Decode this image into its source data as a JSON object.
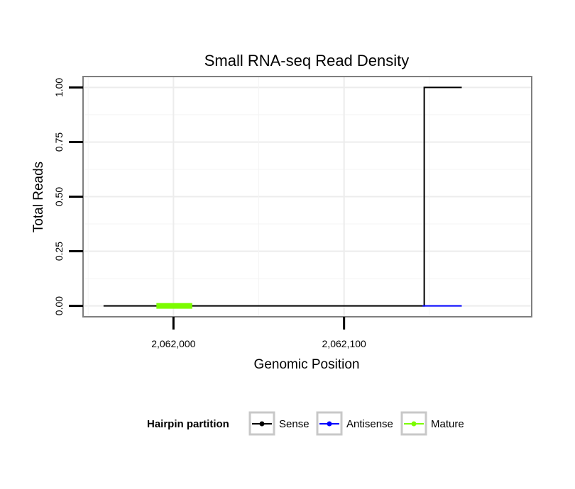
{
  "chart_data": {
    "type": "line",
    "title": "Small RNA-seq Read Density",
    "xlabel": "Genomic Position",
    "ylabel": "Total Reads",
    "xlim": [
      2061947,
      2062210
    ],
    "ylim": [
      -0.05,
      1.05
    ],
    "x_ticks": [
      2062000,
      2062100
    ],
    "x_tick_labels": [
      "2,062,000",
      "2,062,100"
    ],
    "y_ticks": [
      0.0,
      0.25,
      0.5,
      0.75,
      1.0
    ],
    "y_tick_labels": [
      "0.00",
      "0.25",
      "0.50",
      "0.75",
      "1.00"
    ],
    "grid": true,
    "legend": {
      "title": "Hairpin partition",
      "placement": "bottom",
      "entries": [
        {
          "label": "Sense",
          "color": "#000000"
        },
        {
          "label": "Antisense",
          "color": "#0000ff"
        },
        {
          "label": "Mature",
          "color": "#7cfc00"
        }
      ]
    },
    "series": [
      {
        "name": "Sense",
        "color": "#000000",
        "step": true,
        "x": [
          2061959,
          2062146,
          2062147,
          2062169
        ],
        "y": [
          0,
          0,
          1,
          1
        ]
      },
      {
        "name": "Antisense",
        "color": "#0000ff",
        "step": true,
        "x": [
          2062146,
          2062169
        ],
        "y": [
          0,
          0
        ]
      },
      {
        "name": "Mature",
        "color": "#7cfc00",
        "step": true,
        "x": [
          2061990,
          2062011
        ],
        "y": [
          0,
          0
        ]
      }
    ]
  }
}
